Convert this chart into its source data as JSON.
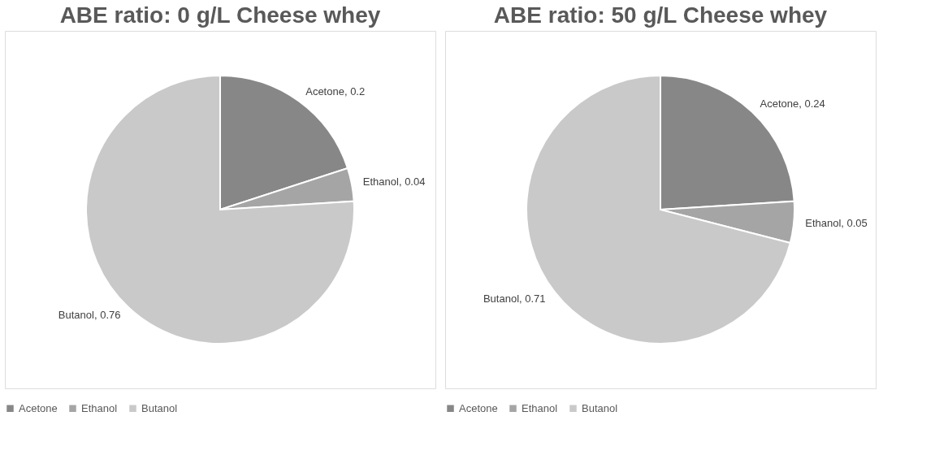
{
  "chart_data": [
    {
      "type": "pie",
      "title": "ABE ratio: 0 g/L Cheese whey",
      "categories": [
        "Acetone",
        "Ethanol",
        "Butanol"
      ],
      "values": [
        0.2,
        0.04,
        0.76
      ],
      "colors": [
        "#878787",
        "#a5a5a5",
        "#c9c9c9"
      ],
      "value_labels": [
        "Acetone, 0.2",
        "Ethanol, 0.04",
        "Butanol, 0.76"
      ],
      "legend": "bottom"
    },
    {
      "type": "pie",
      "title": "ABE ratio: 50 g/L Cheese whey",
      "categories": [
        "Acetone",
        "Ethanol",
        "Butanol"
      ],
      "values": [
        0.24,
        0.05,
        0.71
      ],
      "colors": [
        "#878787",
        "#a5a5a5",
        "#c9c9c9"
      ],
      "value_labels": [
        "Acetone, 0.24",
        "Ethanol, 0.05",
        "Butanol, 0.71"
      ],
      "legend": "bottom"
    }
  ]
}
